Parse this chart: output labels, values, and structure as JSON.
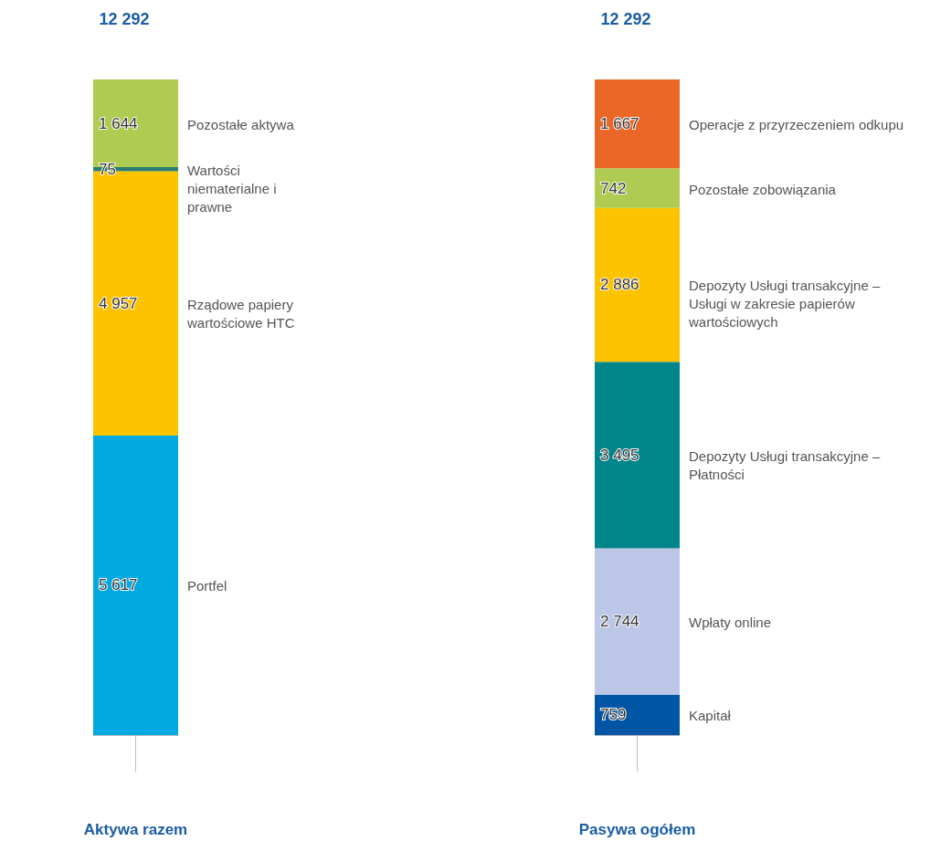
{
  "chart_data": [
    {
      "type": "bar",
      "stacked": true,
      "categories": [
        "Aktywa razem"
      ],
      "totals": [
        "12 292"
      ],
      "series": [
        {
          "name": "Portfel",
          "color": "#00a9e0",
          "values": [
            5617
          ],
          "value_labels": [
            "5 617"
          ]
        },
        {
          "name": "Rządowe papiery wartościowe HTC",
          "color": "#fdc300",
          "values": [
            4957
          ],
          "value_labels": [
            "4 957"
          ]
        },
        {
          "name": "Wartości niematerialne i prawne",
          "color": "#2a7d6f",
          "values": [
            75
          ],
          "value_labels": [
            "75"
          ]
        },
        {
          "name": "Pozostałe aktywa",
          "color": "#b0cb52",
          "values": [
            1644
          ],
          "value_labels": [
            "1 644"
          ]
        }
      ]
    },
    {
      "type": "bar",
      "stacked": true,
      "categories": [
        "Pasywa ogółem"
      ],
      "totals": [
        "12 292"
      ],
      "series": [
        {
          "name": "Kapitał",
          "color": "#0056a4",
          "values": [
            759
          ],
          "value_labels": [
            "759"
          ]
        },
        {
          "name": "Wpłaty online",
          "color": "#bcc6e6",
          "values": [
            2744
          ],
          "value_labels": [
            "2 744"
          ]
        },
        {
          "name": "Depozyty Usługi transakcyjne – Płatności",
          "color": "#00858a",
          "values": [
            3495
          ],
          "value_labels": [
            "3 495"
          ]
        },
        {
          "name": "Depozyty Usługi transakcyjne – Usługi w zakresie papierów wartościowych",
          "color": "#fdc300",
          "values": [
            2886
          ],
          "value_labels": [
            "2 886"
          ]
        },
        {
          "name": "Pozostałe zobowiązania",
          "color": "#b0cb52",
          "values": [
            742
          ],
          "value_labels": [
            "742"
          ]
        },
        {
          "name": "Operacje z przyrzeczeniem odkupu",
          "color": "#ea6728",
          "values": [
            1667
          ],
          "value_labels": [
            "1 667"
          ]
        }
      ]
    }
  ]
}
